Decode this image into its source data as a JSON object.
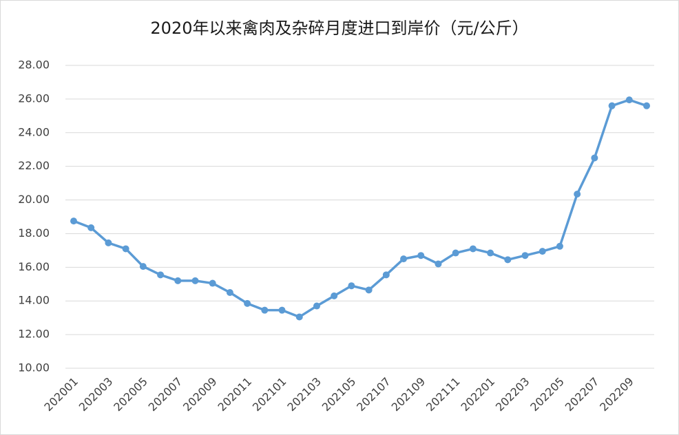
{
  "chart_data": {
    "type": "line",
    "title": "2020年以来禽肉及杂碎月度进口到岸价（元/公斤）",
    "categories": [
      "202001",
      null,
      "202003",
      null,
      "202005",
      null,
      "202007",
      null,
      "202009",
      null,
      "202011",
      null,
      "202101",
      null,
      "202103",
      null,
      "202105",
      null,
      "202107",
      null,
      "202109",
      null,
      "202111",
      null,
      "202201",
      null,
      "202203",
      null,
      "202205",
      null,
      "202207",
      null,
      "202209",
      null
    ],
    "values": [
      18.75,
      18.35,
      17.45,
      17.1,
      16.05,
      15.55,
      15.2,
      15.2,
      15.05,
      14.5,
      13.85,
      13.45,
      13.45,
      13.05,
      13.7,
      14.3,
      14.9,
      14.65,
      15.55,
      16.5,
      16.7,
      16.2,
      16.85,
      17.1,
      16.85,
      16.45,
      16.7,
      16.95,
      17.25,
      20.35,
      22.5,
      25.6,
      25.95,
      25.6
    ],
    "color": "#5b9bd5",
    "ylim": [
      10,
      28
    ],
    "yticks": [
      {
        "value": 10,
        "label": "10.00"
      },
      {
        "value": 12,
        "label": "12.00"
      },
      {
        "value": 14,
        "label": "14.00"
      },
      {
        "value": 16,
        "label": "16.00"
      },
      {
        "value": 18,
        "label": "18.00"
      },
      {
        "value": 20,
        "label": "20.00"
      },
      {
        "value": 22,
        "label": "22.00"
      },
      {
        "value": 24,
        "label": "24.00"
      },
      {
        "value": 26,
        "label": "26.00"
      },
      {
        "value": 28,
        "label": "28.00"
      }
    ],
    "grid": true
  }
}
